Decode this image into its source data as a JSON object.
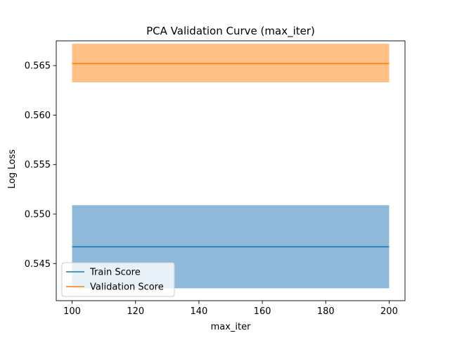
{
  "chart_data": {
    "type": "line",
    "title": "PCA Validation Curve (max_iter)",
    "xlabel": "max_iter",
    "ylabel": "Log Loss",
    "xlim": [
      95,
      205
    ],
    "ylim": [
      0.54125,
      0.5675
    ],
    "xticks": [
      100,
      120,
      140,
      160,
      180,
      200
    ],
    "xtick_labels": [
      "100",
      "120",
      "140",
      "160",
      "180",
      "200"
    ],
    "yticks": [
      0.545,
      0.55,
      0.555,
      0.56,
      0.565
    ],
    "ytick_labels": [
      "0.545",
      "0.550",
      "0.555",
      "0.560",
      "0.565"
    ],
    "grid": false,
    "legend_position": "lower-left",
    "x": [
      100,
      200
    ],
    "series": [
      {
        "name": "Train Score",
        "values": [
          0.5467,
          0.5467
        ],
        "band_lower": [
          0.5425,
          0.5425
        ],
        "band_upper": [
          0.5509,
          0.5509
        ],
        "color": "#1f77b4",
        "band_color": "#8fb9d9"
      },
      {
        "name": "Validation Score",
        "values": [
          0.5652,
          0.5652
        ],
        "band_lower": [
          0.5633,
          0.5633
        ],
        "band_upper": [
          0.5672,
          0.5672
        ],
        "color": "#ff7f0e",
        "band_color": "#ffbf86"
      }
    ]
  }
}
